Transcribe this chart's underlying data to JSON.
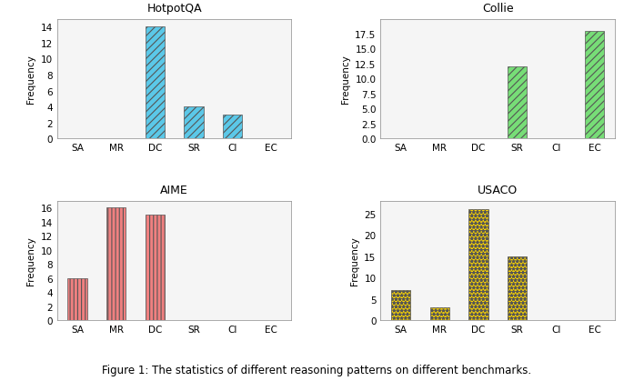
{
  "categories": [
    "SA",
    "MR",
    "DC",
    "SR",
    "CI",
    "EC"
  ],
  "hotpotqa": [
    0,
    0,
    14,
    4,
    3,
    0
  ],
  "collie": [
    0,
    0,
    0,
    12,
    0,
    18
  ],
  "aime": [
    6,
    16,
    15,
    0,
    0,
    0
  ],
  "usaco": [
    7,
    3,
    26,
    15,
    0,
    0
  ],
  "hotpotqa_color": "#5bc8e8",
  "collie_color": "#77dd77",
  "aime_color": "#f08080",
  "usaco_color": "#ffd700",
  "hotpotqa_hatch": "////",
  "collie_hatch": "////",
  "aime_hatch": "||||",
  "usaco_hatch": "****",
  "hotpotqa_title": "HotpotQA",
  "collie_title": "Collie",
  "aime_title": "AIME",
  "usaco_title": "USACO",
  "ylabel": "Frequency",
  "caption": "Figure 1: The statistics of different reasoning patterns on different benchmarks.",
  "hotpotqa_ylim": [
    0,
    15
  ],
  "hotpotqa_yticks": [
    0,
    2,
    4,
    6,
    8,
    10,
    12,
    14
  ],
  "collie_ylim": [
    0,
    20
  ],
  "collie_yticks": [
    0.0,
    2.5,
    5.0,
    7.5,
    10.0,
    12.5,
    15.0,
    17.5
  ],
  "aime_ylim": [
    0,
    17
  ],
  "aime_yticks": [
    0,
    2,
    4,
    6,
    8,
    10,
    12,
    14,
    16
  ],
  "usaco_ylim": [
    0,
    28
  ],
  "usaco_yticks": [
    0,
    5,
    10,
    15,
    20,
    25
  ]
}
